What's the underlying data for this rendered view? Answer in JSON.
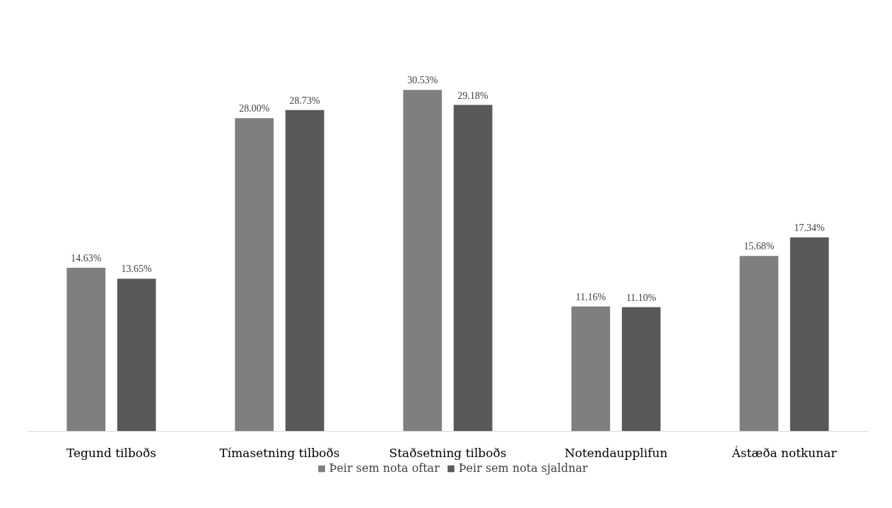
{
  "chart_data": {
    "type": "bar",
    "categories": [
      "Tegund tilboðs",
      "Tímasetning tilboðs",
      "Staðsetning tilboðs",
      "Notendaupplifun",
      "Ástæða notkunar"
    ],
    "series": [
      {
        "name": "Þeir sem nota oftar",
        "color": "#7f7f7f",
        "values": [
          14.63,
          28.0,
          30.53,
          11.16,
          15.68
        ],
        "value_labels": [
          "14.63%",
          "28.00%",
          "30.53%",
          "11.16%",
          "15.68%"
        ]
      },
      {
        "name": "Þeir sem nota sjaldnar",
        "color": "#595959",
        "values": [
          13.65,
          28.73,
          29.18,
          11.1,
          17.34
        ],
        "value_labels": [
          "13.65%",
          "28.73%",
          "29.18%",
          "11.10%",
          "17.34%"
        ]
      }
    ],
    "grid": false,
    "legend": "bottom",
    "tick_labels": "x"
  }
}
